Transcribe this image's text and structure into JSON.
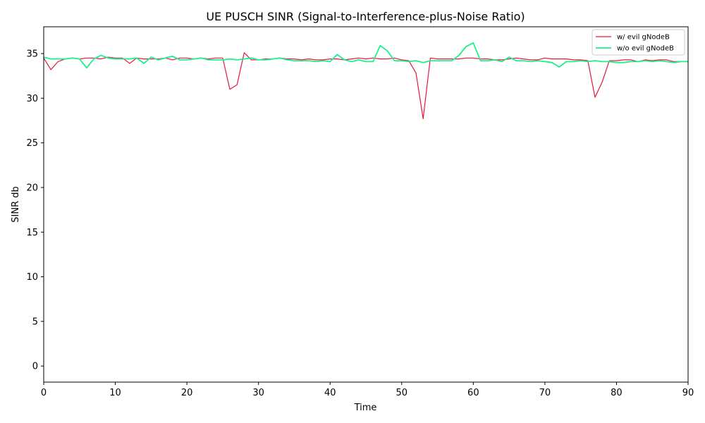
{
  "chart_data": {
    "type": "line",
    "title": "UE PUSCH SINR (Signal-to-Interference-plus-Noise Ratio)",
    "xlabel": "Time",
    "ylabel": "SINR db",
    "xlim": [
      0,
      90
    ],
    "ylim": [
      -1.8,
      38.0
    ],
    "xticks": [
      0,
      10,
      20,
      30,
      40,
      50,
      60,
      70,
      80,
      90
    ],
    "yticks": [
      0,
      5,
      10,
      15,
      20,
      25,
      30,
      35
    ],
    "grid": false,
    "legend_position": "top-right",
    "series": [
      {
        "name": "w/ evil gNodeB",
        "color": "#e8173e",
        "x": [
          0,
          1,
          2,
          3,
          4,
          5,
          6,
          7,
          8,
          9,
          10,
          11,
          12,
          13,
          14,
          15,
          16,
          17,
          18,
          19,
          20,
          21,
          22,
          23,
          24,
          25,
          26,
          27,
          28,
          29,
          30,
          31,
          32,
          33,
          34,
          35,
          36,
          37,
          38,
          39,
          40,
          41,
          42,
          43,
          44,
          45,
          46,
          47,
          48,
          49,
          50,
          51,
          52,
          53,
          54,
          55,
          56,
          57,
          58,
          59,
          60,
          61,
          62,
          63,
          64,
          65,
          66,
          67,
          68,
          69,
          70,
          71,
          72,
          73,
          74,
          75,
          76,
          77,
          78,
          79,
          80,
          81,
          82,
          83,
          84,
          85,
          86,
          87,
          88,
          89,
          90
        ],
        "values": [
          34.5,
          33.2,
          34.1,
          34.4,
          34.5,
          34.4,
          34.5,
          34.5,
          34.4,
          34.6,
          34.5,
          34.5,
          33.9,
          34.5,
          34.4,
          34.4,
          34.4,
          34.5,
          34.3,
          34.5,
          34.5,
          34.4,
          34.5,
          34.4,
          34.5,
          34.5,
          31.0,
          31.5,
          35.1,
          34.3,
          34.3,
          34.4,
          34.4,
          34.5,
          34.4,
          34.4,
          34.3,
          34.4,
          34.3,
          34.3,
          34.4,
          34.4,
          34.3,
          34.4,
          34.5,
          34.4,
          34.5,
          34.4,
          34.4,
          34.5,
          34.3,
          34.2,
          32.8,
          27.7,
          34.5,
          34.4,
          34.4,
          34.4,
          34.4,
          34.5,
          34.5,
          34.4,
          34.4,
          34.3,
          34.3,
          34.4,
          34.5,
          34.4,
          34.3,
          34.3,
          34.5,
          34.4,
          34.4,
          34.4,
          34.3,
          34.3,
          34.2,
          30.1,
          31.8,
          34.2,
          34.2,
          34.3,
          34.3,
          34.1,
          34.3,
          34.2,
          34.3,
          34.3,
          34.1,
          34.1,
          34.1
        ]
      },
      {
        "name": "w/o evil gNodeB",
        "color": "#1ef08a",
        "x": [
          0,
          1,
          2,
          3,
          4,
          5,
          6,
          7,
          8,
          9,
          10,
          11,
          12,
          13,
          14,
          15,
          16,
          17,
          18,
          19,
          20,
          21,
          22,
          23,
          24,
          25,
          26,
          27,
          28,
          29,
          30,
          31,
          32,
          33,
          34,
          35,
          36,
          37,
          38,
          39,
          40,
          41,
          42,
          43,
          44,
          45,
          46,
          47,
          48,
          49,
          50,
          51,
          52,
          53,
          54,
          55,
          56,
          57,
          58,
          59,
          60,
          61,
          62,
          63,
          64,
          65,
          66,
          67,
          68,
          69,
          70,
          71,
          72,
          73,
          74,
          75,
          76,
          77,
          78,
          79,
          80,
          81,
          82,
          83,
          84,
          85,
          86,
          87,
          88,
          89,
          90
        ],
        "values": [
          34.6,
          34.4,
          34.4,
          34.4,
          34.5,
          34.4,
          33.4,
          34.4,
          34.8,
          34.5,
          34.4,
          34.4,
          34.4,
          34.5,
          33.9,
          34.6,
          34.3,
          34.5,
          34.7,
          34.3,
          34.3,
          34.4,
          34.5,
          34.3,
          34.3,
          34.3,
          34.4,
          34.3,
          34.4,
          34.5,
          34.3,
          34.3,
          34.4,
          34.5,
          34.3,
          34.2,
          34.2,
          34.2,
          34.1,
          34.2,
          34.1,
          34.9,
          34.3,
          34.1,
          34.3,
          34.1,
          34.1,
          35.9,
          35.3,
          34.2,
          34.2,
          34.1,
          34.2,
          34.0,
          34.2,
          34.2,
          34.2,
          34.2,
          34.8,
          35.8,
          36.2,
          34.2,
          34.2,
          34.3,
          34.1,
          34.6,
          34.2,
          34.2,
          34.1,
          34.2,
          34.1,
          34.0,
          33.5,
          34.1,
          34.1,
          34.2,
          34.1,
          34.2,
          34.1,
          34.1,
          34.0,
          34.0,
          34.1,
          34.1,
          34.2,
          34.1,
          34.2,
          34.1,
          34.0,
          34.1,
          34.1
        ]
      }
    ]
  }
}
